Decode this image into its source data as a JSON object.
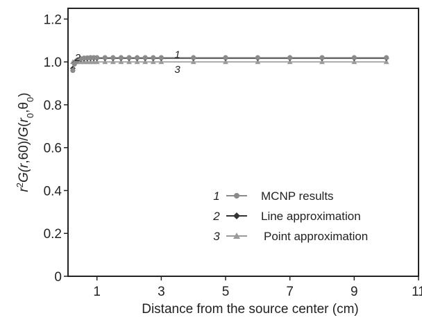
{
  "chart_data": {
    "type": "line",
    "title": "",
    "xlabel": "Distance from the source center (cm)",
    "ylabel_parts": [
      "r",
      "2",
      "G(",
      "r",
      ",60)/",
      "G",
      "(",
      "r",
      "0",
      ",θ",
      "0",
      ")"
    ],
    "xlim": [
      0.1,
      11
    ],
    "ylim": [
      0,
      1.25
    ],
    "x_ticks": [
      1,
      3,
      5,
      7,
      9,
      11
    ],
    "y_ticks": [
      0,
      0.2,
      0.4,
      0.6,
      0.8,
      1.0,
      1.2
    ],
    "x_tick_labels": [
      "1",
      "3",
      "5",
      "7",
      "9",
      "11"
    ],
    "y_tick_labels": [
      "0",
      "0.2",
      "0.4",
      "0.6",
      "0.8",
      "1.0",
      "1.2"
    ],
    "grid": false,
    "legend_position": "bottom-right",
    "series": [
      {
        "id": "1",
        "name": "MCNP results",
        "color": "#8a8a8a",
        "marker": "circle",
        "x": [
          0.25,
          0.3,
          0.35,
          0.4,
          0.5,
          0.6,
          0.7,
          0.8,
          0.9,
          1.0,
          1.25,
          1.5,
          1.75,
          2.0,
          2.25,
          2.5,
          2.75,
          3.0,
          4,
          5,
          6,
          7,
          8,
          9,
          10
        ],
        "y": [
          0.96,
          0.99,
          1.0,
          1.01,
          1.015,
          1.018,
          1.019,
          1.02,
          1.02,
          1.02,
          1.02,
          1.02,
          1.02,
          1.02,
          1.02,
          1.02,
          1.02,
          1.02,
          1.02,
          1.02,
          1.02,
          1.02,
          1.02,
          1.02,
          1.02
        ]
      },
      {
        "id": "2",
        "name": "Line approximation",
        "color": "#333333",
        "marker": "diamond",
        "x": [
          0.25,
          0.3,
          0.35,
          0.4,
          0.5,
          0.6,
          0.7,
          0.8,
          0.9,
          1.0,
          1.25,
          1.5,
          1.75,
          2.0,
          2.25,
          2.5,
          2.75,
          3.0,
          4,
          5,
          6,
          7,
          8,
          9,
          10
        ],
        "y": [
          0.97,
          0.995,
          1.005,
          1.01,
          1.013,
          1.015,
          1.016,
          1.017,
          1.017,
          1.017,
          1.017,
          1.017,
          1.017,
          1.017,
          1.017,
          1.017,
          1.017,
          1.017,
          1.017,
          1.017,
          1.017,
          1.017,
          1.017,
          1.017,
          1.017
        ]
      },
      {
        "id": "3",
        "name": "Point approximation",
        "color": "#9a9a9a",
        "marker": "triangle",
        "x": [
          0.25,
          0.3,
          0.35,
          0.4,
          0.5,
          0.6,
          0.7,
          0.8,
          0.9,
          1.0,
          1.25,
          1.5,
          1.75,
          2.0,
          2.25,
          2.5,
          2.75,
          3.0,
          4,
          5,
          6,
          7,
          8,
          9,
          10
        ],
        "y": [
          1.0,
          1.0,
          1.0,
          1.0,
          1.0,
          1.0,
          1.0,
          1.0,
          1.0,
          1.0,
          1.0,
          1.0,
          1.0,
          1.0,
          1.0,
          1.0,
          1.0,
          1.0,
          1.0,
          1.0,
          1.0,
          1.0,
          1.0,
          1.0,
          1.0
        ]
      }
    ],
    "annotations": [
      {
        "text": "1",
        "x": 3.5,
        "y": 1.035
      },
      {
        "text": "2",
        "x": 0.4,
        "y": 1.02
      },
      {
        "text": "3",
        "x": 3.5,
        "y": 0.965
      }
    ]
  }
}
